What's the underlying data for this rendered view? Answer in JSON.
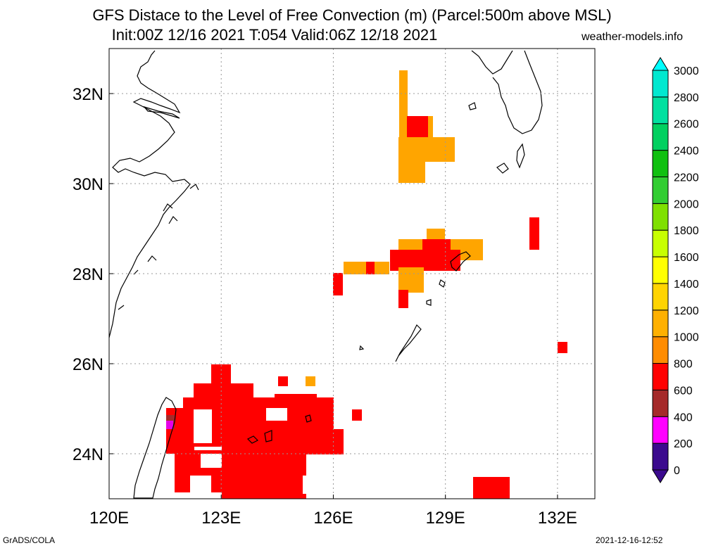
{
  "title": {
    "line1": "GFS Distace to the Level of Free Convection (m) (Parcel:500m above MSL)",
    "line2": "Init:00Z 12/16 2021 T:054 Valid:06Z 12/18 2021",
    "site": "weather-models.info"
  },
  "map": {
    "lon_range": [
      120,
      133
    ],
    "lat_range": [
      23,
      33
    ],
    "grid": true,
    "lon_ticks": [
      "120E",
      "123E",
      "126E",
      "129E",
      "132E"
    ],
    "lat_ticks": [
      "24N",
      "26N",
      "28N",
      "30N",
      "32N"
    ]
  },
  "colorbar": {
    "labels": [
      "0",
      "200",
      "400",
      "600",
      "800",
      "1000",
      "1200",
      "1400",
      "1600",
      "1800",
      "2000",
      "2200",
      "2400",
      "2600",
      "2800",
      "3000"
    ],
    "colors": [
      "#3b0a8e",
      "#ff00ff",
      "#a52a2a",
      "#ff0000",
      "#ff8c00",
      "#ffb000",
      "#ffd400",
      "#ffff00",
      "#c8ff00",
      "#7fe000",
      "#32cd32",
      "#10c010",
      "#00d060",
      "#00e0a0",
      "#00e8d0",
      "#00ffff"
    ]
  },
  "footer": {
    "left": "GrADS/COLA",
    "right": "2021-12-16-12:52"
  }
}
